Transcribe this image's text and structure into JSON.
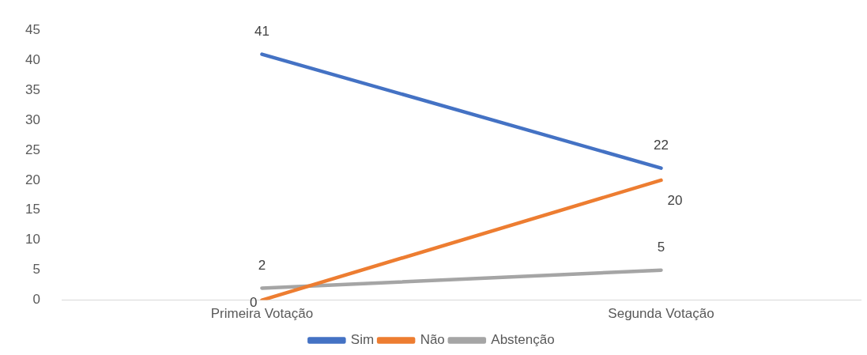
{
  "chart_data": {
    "type": "line",
    "categories": [
      "Primeira Votação",
      "Segunda Votação"
    ],
    "series": [
      {
        "name": "Sim",
        "color": "#4472c4",
        "values": [
          41,
          22
        ]
      },
      {
        "name": "Não",
        "color": "#ed7d31",
        "values": [
          0,
          20
        ]
      },
      {
        "name": "Abstenção",
        "color": "#a5a5a5",
        "values": [
          2,
          5
        ]
      }
    ],
    "ylim": [
      0,
      45
    ],
    "yticks": [
      0,
      5,
      10,
      15,
      20,
      25,
      30,
      35,
      40,
      45
    ],
    "grid": false,
    "legend": "bottom",
    "marker": "none",
    "line_style": "solid",
    "data_labels": true
  }
}
